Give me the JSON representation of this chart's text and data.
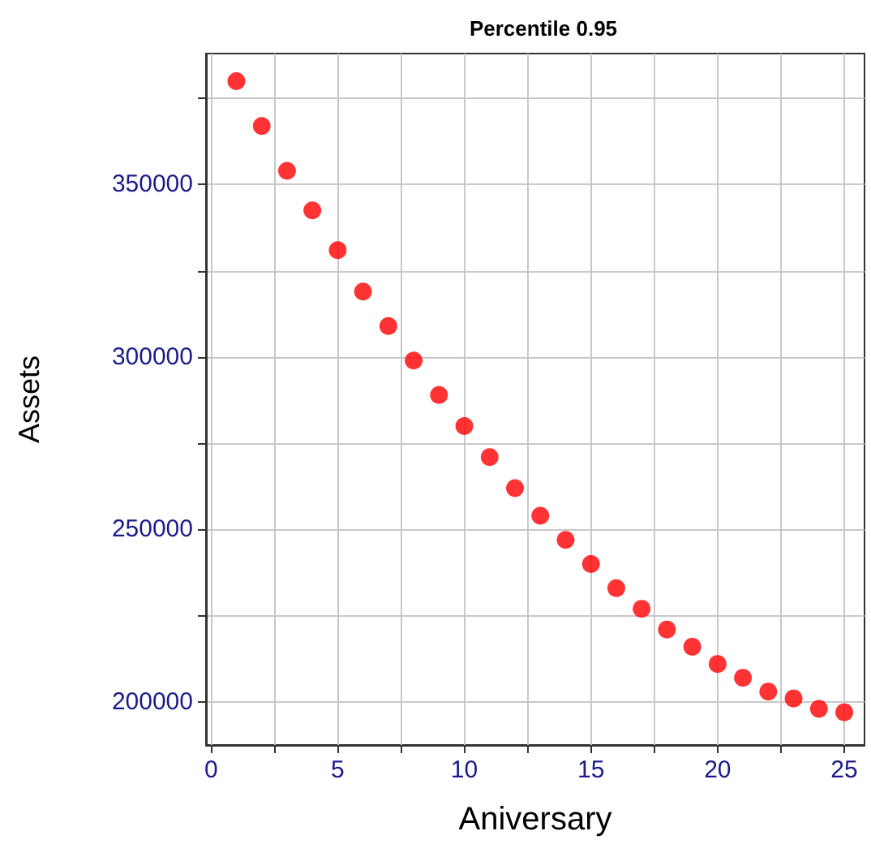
{
  "chart_data": {
    "type": "scatter",
    "title": "Percentile 0.95",
    "xlabel": "Aniversary",
    "ylabel": "Assets",
    "x": [
      1,
      2,
      3,
      4,
      5,
      6,
      7,
      8,
      9,
      10,
      11,
      12,
      13,
      14,
      15,
      16,
      17,
      18,
      19,
      20,
      21,
      22,
      23,
      24,
      25
    ],
    "series": [
      {
        "color": "#ff0000",
        "values": [
          380000,
          367000,
          354000,
          342500,
          331000,
          319000,
          309000,
          299000,
          289000,
          280000,
          271000,
          262000,
          254000,
          247000,
          240000,
          233000,
          227000,
          221000,
          216000,
          211000,
          207000,
          203000,
          201000,
          198000,
          197000
        ]
      }
    ],
    "xlim": [
      -0.2,
      25.8
    ],
    "ylim": [
      187500,
      388000
    ],
    "xticks": [
      0,
      {
        "value": 2.5,
        "label": null
      },
      5,
      {
        "value": 7.5,
        "label": null
      },
      10,
      {
        "value": 12.5,
        "label": null
      },
      15,
      {
        "value": 17.5,
        "label": null
      },
      20,
      {
        "value": 22.5,
        "label": null
      },
      25
    ],
    "yticks": [
      {
        "value": 200000,
        "label": "200000"
      },
      {
        "value": 225000,
        "label": null
      },
      {
        "value": 250000,
        "label": "250000"
      },
      {
        "value": 275000,
        "label": null
      },
      {
        "value": 300000,
        "label": "300000"
      },
      {
        "value": 325000,
        "label": null
      },
      {
        "value": 350000,
        "label": "350000"
      },
      {
        "value": 375000,
        "label": null
      }
    ],
    "grid": true,
    "marker": "circle"
  }
}
